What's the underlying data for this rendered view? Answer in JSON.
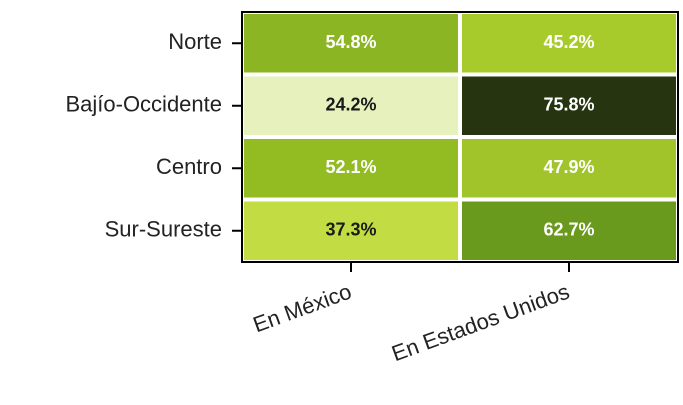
{
  "chart_data": {
    "type": "heatmap",
    "categories": [
      "Norte",
      "Bajío-Occidente",
      "Centro",
      "Sur-Sureste"
    ],
    "series": [
      {
        "name": "En México",
        "values": [
          54.8,
          24.2,
          52.1,
          37.3
        ],
        "value_labels": [
          "54.8%",
          "24.2%",
          "52.1%",
          "37.3%"
        ],
        "colors": [
          "#8cb523",
          "#e6f1bd",
          "#93bb22",
          "#c2dd44"
        ]
      },
      {
        "name": "En Estados Unidos",
        "values": [
          45.2,
          75.8,
          47.9,
          62.7
        ],
        "value_labels": [
          "45.2%",
          "75.8%",
          "47.9%",
          "62.7%"
        ],
        "colors": [
          "#a8cb2c",
          "#263510",
          "#a0c42a",
          "#6a9a1d"
        ]
      }
    ]
  }
}
